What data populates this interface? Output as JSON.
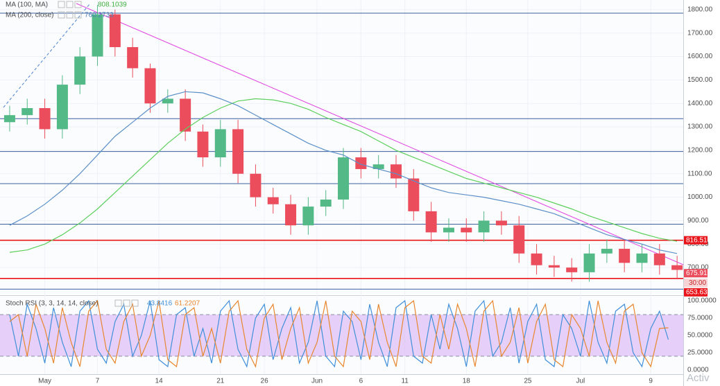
{
  "chart_data": {
    "type": "candlestick",
    "x": [
      -4,
      -2,
      0,
      2,
      4,
      6,
      8,
      10,
      12,
      14,
      16,
      18,
      20,
      22,
      24,
      26,
      28,
      30,
      32,
      34,
      36,
      38,
      40,
      42,
      44,
      46,
      48,
      50,
      52,
      54,
      56,
      58,
      60,
      62,
      64,
      66,
      68,
      70,
      72
    ],
    "open": [
      1320,
      1350,
      1380,
      1290,
      1480,
      1600,
      1780,
      1640,
      1550,
      1400,
      1420,
      1280,
      1170,
      1290,
      1100,
      1000,
      970,
      880,
      960,
      990,
      1170,
      1120,
      1140,
      1080,
      940,
      850,
      870,
      850,
      900,
      880,
      760,
      710,
      700,
      680,
      760,
      780,
      720,
      760,
      710
    ],
    "high": [
      1390,
      1420,
      1420,
      1520,
      1640,
      1820,
      1800,
      1680,
      1570,
      1460,
      1460,
      1310,
      1330,
      1330,
      1140,
      1040,
      1010,
      1000,
      1030,
      1210,
      1210,
      1180,
      1180,
      1120,
      980,
      910,
      910,
      940,
      940,
      920,
      800,
      750,
      740,
      800,
      820,
      820,
      800,
      800,
      750
    ],
    "low": [
      1280,
      1310,
      1250,
      1250,
      1440,
      1560,
      1600,
      1510,
      1360,
      1360,
      1240,
      1130,
      1130,
      1060,
      960,
      930,
      840,
      840,
      920,
      950,
      1080,
      1080,
      1040,
      900,
      810,
      810,
      810,
      810,
      840,
      720,
      670,
      660,
      640,
      640,
      720,
      680,
      680,
      670,
      650
    ],
    "close": [
      1350,
      1380,
      1290,
      1480,
      1600,
      1780,
      1640,
      1550,
      1400,
      1420,
      1280,
      1170,
      1290,
      1100,
      1000,
      970,
      880,
      960,
      990,
      1170,
      1120,
      1140,
      1080,
      940,
      850,
      870,
      850,
      900,
      880,
      760,
      710,
      700,
      680,
      760,
      780,
      720,
      760,
      710,
      690
    ],
    "up_color": "#53b987",
    "down_color": "#eb4d5c",
    "series": [
      {
        "name": "MA (100, MA)",
        "color": "#5ccf5c",
        "last_value": 808.1039,
        "values": [
          765,
          775,
          800,
          840,
          890,
          950,
          1020,
          1090,
          1160,
          1230,
          1290,
          1340,
          1380,
          1410,
          1420,
          1415,
          1400,
          1375,
          1340,
          1310,
          1280,
          1240,
          1200,
          1170,
          1140,
          1110,
          1080,
          1060,
          1040,
          1020,
          1000,
          975,
          950,
          920,
          895,
          870,
          845,
          825,
          812
        ]
      },
      {
        "name": "MA (200, close)",
        "color": "#5b8fc7",
        "last_value": 760.2733,
        "values": [
          880,
          920,
          970,
          1030,
          1100,
          1180,
          1260,
          1320,
          1380,
          1430,
          1450,
          1445,
          1420,
          1390,
          1350,
          1310,
          1270,
          1230,
          1200,
          1180,
          1140,
          1120,
          1100,
          1070,
          1040,
          1020,
          1010,
          1000,
          985,
          970,
          950,
          930,
          900,
          870,
          840,
          820,
          800,
          775,
          760
        ]
      }
    ],
    "xlim": [
      -5.1,
      72.7
    ],
    "ylim": [
      585,
      1841
    ],
    "xticks": [
      {
        "value": 0,
        "label": "May"
      },
      {
        "value": 6,
        "label": "7"
      },
      {
        "value": 13,
        "label": "14"
      },
      {
        "value": 20,
        "label": "21"
      },
      {
        "value": 25,
        "label": "26"
      },
      {
        "value": 31,
        "label": "Jun"
      },
      {
        "value": 36,
        "label": "6"
      },
      {
        "value": 41,
        "label": "11"
      },
      {
        "value": 48,
        "label": "18"
      },
      {
        "value": 55,
        "label": "25"
      },
      {
        "value": 61,
        "label": "Jul"
      },
      {
        "value": 69,
        "label": "9"
      }
    ],
    "yticks": [
      {
        "value": 700,
        "label": "700.00"
      },
      {
        "value": 800,
        "label": "800.00"
      },
      {
        "value": 900,
        "label": "900.00"
      },
      {
        "value": 1000,
        "label": "1000.00"
      },
      {
        "value": 1100,
        "label": "1100.00"
      },
      {
        "value": 1200,
        "label": "1200.00"
      },
      {
        "value": 1300,
        "label": "1300.00"
      },
      {
        "value": 1400,
        "label": "1400.00"
      },
      {
        "value": 1500,
        "label": "1500.00"
      },
      {
        "value": 1600,
        "label": "1600.00"
      },
      {
        "value": 1700,
        "label": "1700.00"
      },
      {
        "value": 1800,
        "label": "1800.00"
      }
    ],
    "hlines": [
      {
        "value": 1785,
        "color": "#3a5f9e"
      },
      {
        "value": 1335,
        "color": "#3a5f9e"
      },
      {
        "value": 1195,
        "color": "#3a5f9e"
      },
      {
        "value": 1058,
        "color": "#3a5f9e"
      },
      {
        "value": 885,
        "color": "#3a5f9e"
      },
      {
        "value": 608,
        "color": "#3a5f9e"
      },
      {
        "value": 816.51,
        "color": "#e8141a",
        "label": "816.51"
      },
      {
        "value": 653.63,
        "color": "#e8141a",
        "label": "653.63"
      }
    ],
    "last_price": {
      "value": 675.91,
      "label": "675.91",
      "countdown": "30:00"
    },
    "rsi": {
      "type": "line",
      "title": "Stoch RSI (3, 3, 14, 14, close)",
      "legend_values": [
        {
          "value": 43.8416,
          "color": "#3f8fd9"
        },
        {
          "value": 61.2207,
          "color": "#e8862c"
        }
      ],
      "x": [
        -4,
        -3,
        -2,
        -1,
        0,
        1,
        2,
        3,
        4,
        5,
        6,
        7,
        8,
        9,
        10,
        11,
        12,
        13,
        14,
        15,
        16,
        17,
        18,
        19,
        20,
        21,
        22,
        23,
        24,
        25,
        26,
        27,
        28,
        29,
        30,
        31,
        32,
        33,
        34,
        35,
        36,
        37,
        38,
        39,
        40,
        41,
        42,
        43,
        44,
        45,
        46,
        47,
        48,
        49,
        50,
        51,
        52,
        53,
        54,
        55,
        56,
        57,
        58,
        59,
        60,
        61,
        62,
        63,
        64,
        65,
        66,
        67,
        68,
        69,
        70,
        71
      ],
      "series": [
        {
          "color": "#3f8fd9",
          "values": [
            80,
            20,
            95,
            60,
            10,
            90,
            40,
            5,
            85,
            100,
            30,
            10,
            70,
            95,
            20,
            50,
            100,
            15,
            5,
            80,
            90,
            20,
            60,
            10,
            85,
            100,
            30,
            5,
            75,
            95,
            15,
            60,
            90,
            10,
            40,
            100,
            20,
            5,
            85,
            70,
            15,
            95,
            40,
            5,
            90,
            100,
            20,
            10,
            80,
            30,
            95,
            60,
            5,
            85,
            100,
            20,
            40,
            90,
            10,
            70,
            95,
            15,
            5,
            80,
            60,
            20,
            100,
            40,
            10,
            85,
            95,
            25,
            5,
            60,
            85,
            44
          ]
        },
        {
          "color": "#e8862c",
          "values": [
            70,
            80,
            20,
            95,
            60,
            10,
            90,
            40,
            5,
            85,
            100,
            30,
            10,
            70,
            95,
            20,
            50,
            100,
            15,
            5,
            80,
            90,
            20,
            60,
            10,
            85,
            100,
            30,
            5,
            75,
            95,
            15,
            60,
            90,
            10,
            40,
            100,
            20,
            5,
            85,
            70,
            15,
            95,
            40,
            5,
            90,
            100,
            20,
            10,
            80,
            30,
            95,
            60,
            5,
            85,
            100,
            20,
            40,
            90,
            10,
            70,
            95,
            15,
            5,
            80,
            60,
            20,
            100,
            40,
            10,
            85,
            95,
            25,
            5,
            60,
            61
          ]
        }
      ],
      "band": [
        20,
        80
      ],
      "band_color": "#d9b3f5",
      "ylim": [
        -11,
        106
      ],
      "yticks": [
        {
          "value": 0,
          "label": "0.0000"
        },
        {
          "value": 25,
          "label": "25.0000"
        },
        {
          "value": 50,
          "label": "50.0000"
        },
        {
          "value": 75,
          "label": "75.0000"
        },
        {
          "value": 100,
          "label": "100.0000"
        }
      ]
    },
    "watermark": "Activ"
  }
}
